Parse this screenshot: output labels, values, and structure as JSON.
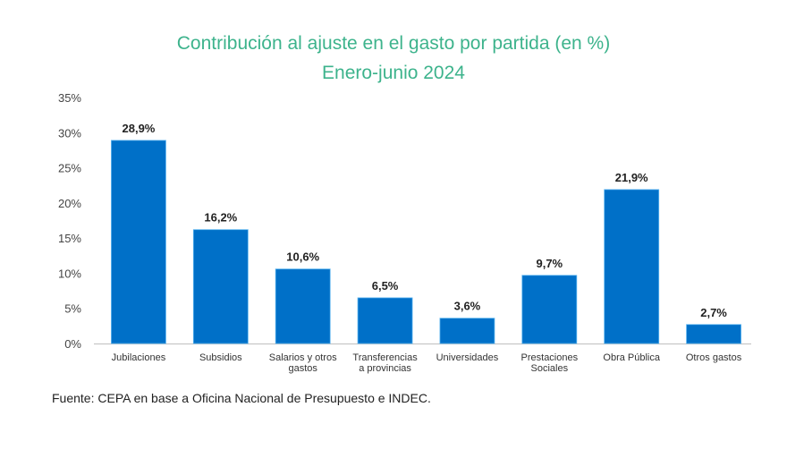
{
  "chart_data": {
    "type": "bar",
    "title": "Contribución al ajuste en el gasto por partida (en %)",
    "subtitle": "Enero-junio 2024",
    "xlabel": "",
    "ylabel": "",
    "ylim": [
      0,
      35
    ],
    "yticks": [
      0,
      5,
      10,
      15,
      20,
      25,
      30,
      35
    ],
    "ytick_labels": [
      "0%",
      "5%",
      "10%",
      "15%",
      "20%",
      "25%",
      "30%",
      "35%"
    ],
    "grid": false,
    "legend": "none",
    "categories": [
      [
        "Jubilaciones"
      ],
      [
        "Subsidios"
      ],
      [
        "Salarios y otros",
        "gastos"
      ],
      [
        "Transferencias",
        "a provincias"
      ],
      [
        "Universidades"
      ],
      [
        "Prestaciones",
        "Sociales"
      ],
      [
        "Obra Pública"
      ],
      [
        "Otros gastos"
      ]
    ],
    "values": [
      28.9,
      16.2,
      10.6,
      6.5,
      3.6,
      9.7,
      21.9,
      2.7
    ],
    "data_labels": [
      "28,9%",
      "16,2%",
      "10,6%",
      "6,5%",
      "3,6%",
      "9,7%",
      "21,9%",
      "2,7%"
    ],
    "bar_color": "#0070c8",
    "title_color": "#3db38c"
  },
  "source": "Fuente: CEPA en base a Oficina Nacional de Presupuesto e INDEC."
}
